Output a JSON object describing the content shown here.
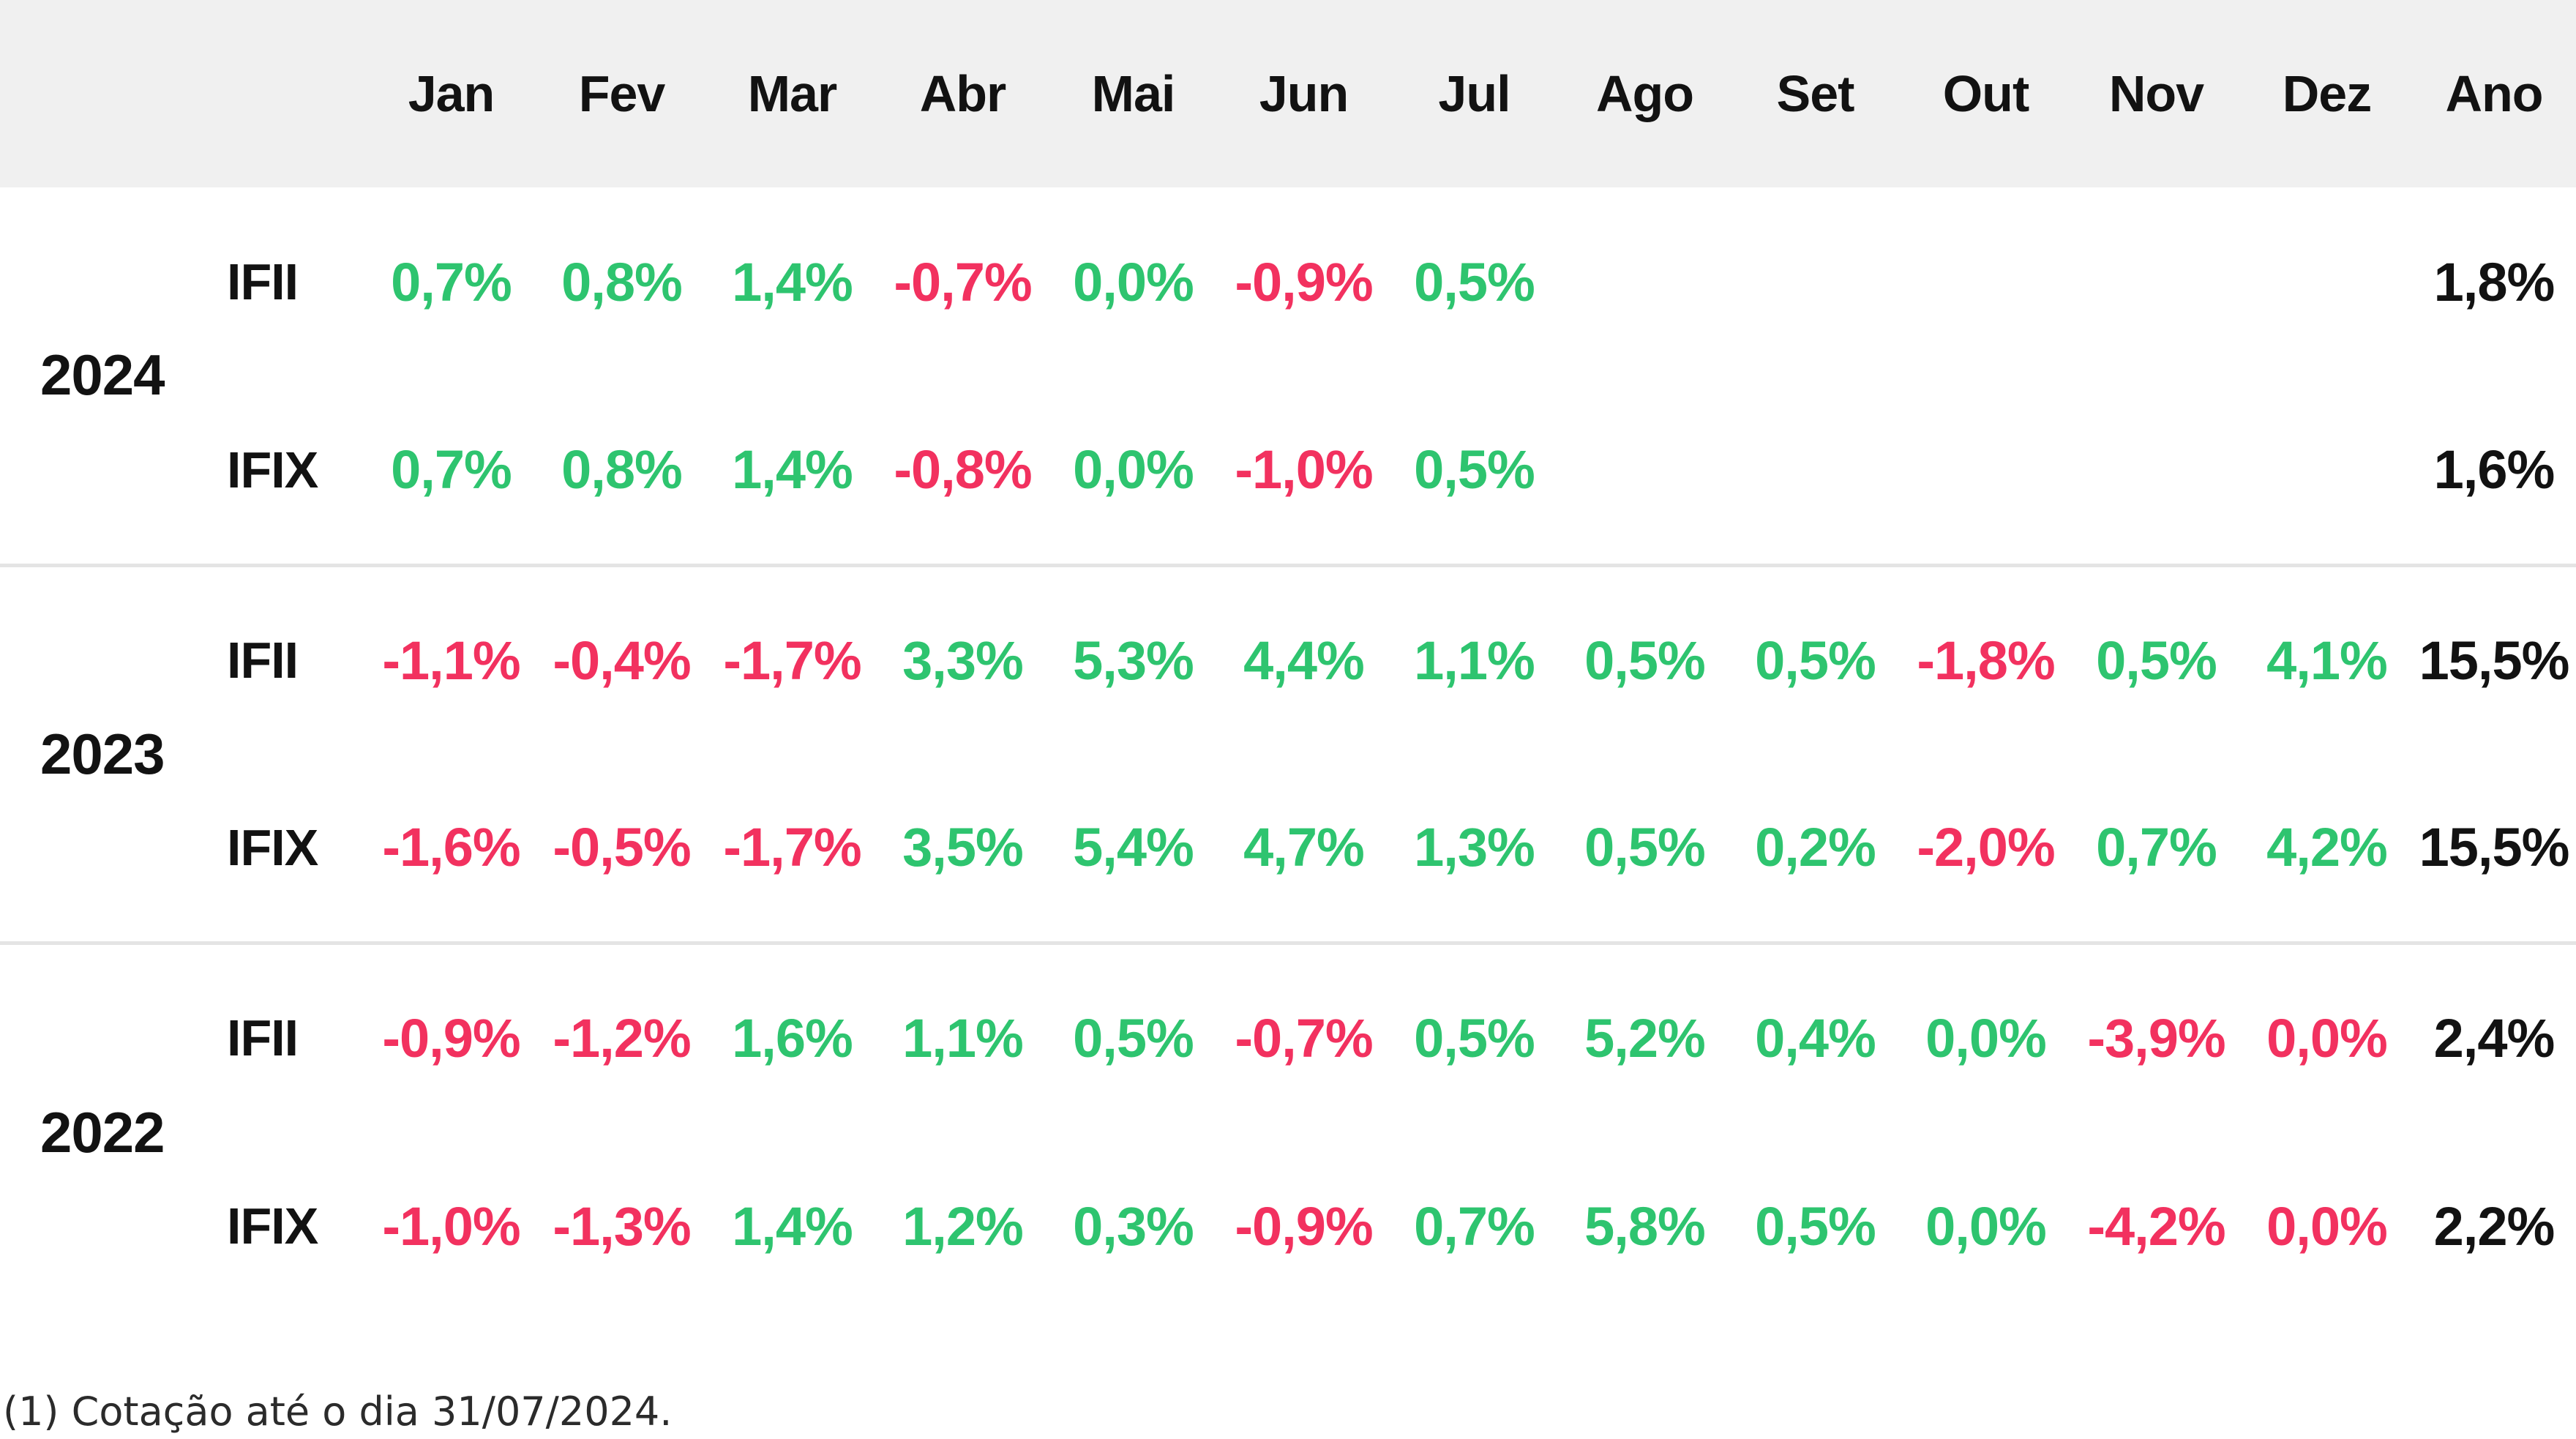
{
  "colors": {
    "positive": "#2EC46F",
    "negative": "#F2315F",
    "total_text": "#121212",
    "header_bg": "#F0F0F0",
    "separator": "#E4E4E4",
    "footnote_text": "#2B2B2B"
  },
  "chart_data": {
    "type": "table",
    "columns": [
      "Jan",
      "Fev",
      "Mar",
      "Abr",
      "Mai",
      "Jun",
      "Jul",
      "Ago",
      "Set",
      "Out",
      "Nov",
      "Dez",
      "Ano"
    ],
    "row_header_columns": [
      "year",
      "index"
    ],
    "groups": [
      {
        "year": "2024",
        "rows": [
          {
            "index": "IFII",
            "values": [
              "0,7%",
              "0,8%",
              "1,4%",
              "-0,7%",
              "0,0%",
              "-0,9%",
              "0,5%",
              "",
              "",
              "",
              "",
              "",
              "1,8%"
            ],
            "colors": [
              "pos",
              "pos",
              "pos",
              "neg",
              "pos",
              "neg",
              "pos",
              "",
              "",
              "",
              "",
              "",
              "total"
            ]
          },
          {
            "index": "IFIX",
            "values": [
              "0,7%",
              "0,8%",
              "1,4%",
              "-0,8%",
              "0,0%",
              "-1,0%",
              "0,5%",
              "",
              "",
              "",
              "",
              "",
              "1,6%"
            ],
            "colors": [
              "pos",
              "pos",
              "pos",
              "neg",
              "pos",
              "neg",
              "pos",
              "",
              "",
              "",
              "",
              "",
              "total"
            ]
          }
        ]
      },
      {
        "year": "2023",
        "rows": [
          {
            "index": "IFII",
            "values": [
              "-1,1%",
              "-0,4%",
              "-1,7%",
              "3,3%",
              "5,3%",
              "4,4%",
              "1,1%",
              "0,5%",
              "0,5%",
              "-1,8%",
              "0,5%",
              "4,1%",
              "15,5%"
            ],
            "colors": [
              "neg",
              "neg",
              "neg",
              "pos",
              "pos",
              "pos",
              "pos",
              "pos",
              "pos",
              "neg",
              "pos",
              "pos",
              "total"
            ]
          },
          {
            "index": "IFIX",
            "values": [
              "-1,6%",
              "-0,5%",
              "-1,7%",
              "3,5%",
              "5,4%",
              "4,7%",
              "1,3%",
              "0,5%",
              "0,2%",
              "-2,0%",
              "0,7%",
              "4,2%",
              "15,5%"
            ],
            "colors": [
              "neg",
              "neg",
              "neg",
              "pos",
              "pos",
              "pos",
              "pos",
              "pos",
              "pos",
              "neg",
              "pos",
              "pos",
              "total"
            ]
          }
        ]
      },
      {
        "year": "2022",
        "rows": [
          {
            "index": "IFII",
            "values": [
              "-0,9%",
              "-1,2%",
              "1,6%",
              "1,1%",
              "0,5%",
              "-0,7%",
              "0,5%",
              "5,2%",
              "0,4%",
              "0,0%",
              "-3,9%",
              "0,0%",
              "2,4%"
            ],
            "colors": [
              "neg",
              "neg",
              "pos",
              "pos",
              "pos",
              "neg",
              "pos",
              "pos",
              "pos",
              "pos",
              "neg",
              "neg",
              "total"
            ]
          },
          {
            "index": "IFIX",
            "values": [
              "-1,0%",
              "-1,3%",
              "1,4%",
              "1,2%",
              "0,3%",
              "-0,9%",
              "0,7%",
              "5,8%",
              "0,5%",
              "0,0%",
              "-4,2%",
              "0,0%",
              "2,2%"
            ],
            "colors": [
              "neg",
              "neg",
              "pos",
              "pos",
              "pos",
              "neg",
              "pos",
              "pos",
              "pos",
              "pos",
              "neg",
              "neg",
              "total"
            ]
          }
        ]
      }
    ]
  },
  "footnote": "(1) Cotação até o dia 31/07/2024."
}
